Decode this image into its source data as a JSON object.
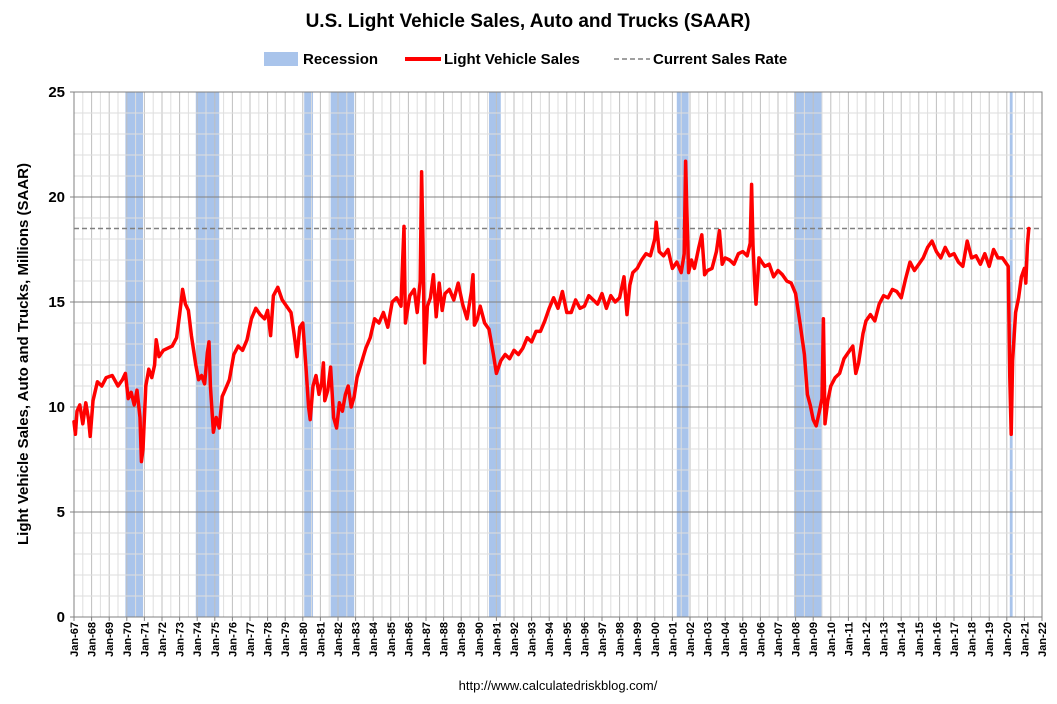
{
  "chart_data": {
    "type": "line",
    "title": "U.S. Light Vehicle Sales, Auto and Trucks (SAAR)",
    "ylabel": "Light Vehicle Sales, Auto and Trucks, Millions (SAAR)",
    "xlabel": "",
    "source": "http://www.calculatedriskblog.com/",
    "ylim": [
      0,
      25
    ],
    "yticks": [
      0,
      5,
      10,
      15,
      20,
      25
    ],
    "xlim": [
      1967.0,
      2022.0
    ],
    "x_tick_labels": [
      "Jan-67",
      "Jan-68",
      "Jan-69",
      "Jan-70",
      "Jan-71",
      "Jan-72",
      "Jan-73",
      "Jan-74",
      "Jan-75",
      "Jan-76",
      "Jan-77",
      "Jan-78",
      "Jan-79",
      "Jan-80",
      "Jan-81",
      "Jan-82",
      "Jan-83",
      "Jan-84",
      "Jan-85",
      "Jan-86",
      "Jan-87",
      "Jan-88",
      "Jan-89",
      "Jan-90",
      "Jan-91",
      "Jan-92",
      "Jan-93",
      "Jan-94",
      "Jan-95",
      "Jan-96",
      "Jan-97",
      "Jan-98",
      "Jan-99",
      "Jan-00",
      "Jan-01",
      "Jan-02",
      "Jan-03",
      "Jan-04",
      "Jan-05",
      "Jan-06",
      "Jan-07",
      "Jan-08",
      "Jan-09",
      "Jan-10",
      "Jan-11",
      "Jan-12",
      "Jan-13",
      "Jan-14",
      "Jan-15",
      "Jan-16",
      "Jan-17",
      "Jan-18",
      "Jan-19",
      "Jan-20",
      "Jan-21",
      "Jan-22"
    ],
    "grid": true,
    "legend_position": "top",
    "legend": [
      {
        "label": "Recession",
        "kind": "box",
        "color": "#a9c4eb"
      },
      {
        "label": "Light Vehicle Sales",
        "kind": "line",
        "color": "#ff0000"
      },
      {
        "label": "Current Sales Rate",
        "kind": "dashed",
        "color": "#808080"
      }
    ],
    "current_sales_rate": 18.5,
    "recessions": [
      [
        1969.92,
        1970.92
      ],
      [
        1973.92,
        1975.25
      ],
      [
        1980.08,
        1980.58
      ],
      [
        1981.58,
        1982.92
      ],
      [
        1990.58,
        1991.25
      ],
      [
        2001.25,
        2001.92
      ],
      [
        2007.92,
        2009.5
      ],
      [
        2020.17,
        2020.33
      ]
    ],
    "series": [
      {
        "name": "Light Vehicle Sales",
        "color": "#ff0000",
        "points": [
          [
            1967.0,
            9.3
          ],
          [
            1967.08,
            8.7
          ],
          [
            1967.17,
            9.8
          ],
          [
            1967.33,
            10.1
          ],
          [
            1967.5,
            9.2
          ],
          [
            1967.67,
            10.2
          ],
          [
            1967.83,
            9.4
          ],
          [
            1967.92,
            8.6
          ],
          [
            1968.08,
            10.3
          ],
          [
            1968.33,
            11.2
          ],
          [
            1968.58,
            11.0
          ],
          [
            1968.83,
            11.4
          ],
          [
            1969.17,
            11.5
          ],
          [
            1969.5,
            11.0
          ],
          [
            1969.75,
            11.3
          ],
          [
            1969.92,
            11.6
          ],
          [
            1970.08,
            10.4
          ],
          [
            1970.25,
            10.7
          ],
          [
            1970.42,
            10.1
          ],
          [
            1970.58,
            10.8
          ],
          [
            1970.75,
            9.5
          ],
          [
            1970.83,
            7.4
          ],
          [
            1970.92,
            8.0
          ],
          [
            1971.08,
            11.0
          ],
          [
            1971.25,
            11.8
          ],
          [
            1971.42,
            11.4
          ],
          [
            1971.58,
            12.0
          ],
          [
            1971.67,
            13.2
          ],
          [
            1971.83,
            12.4
          ],
          [
            1972.08,
            12.7
          ],
          [
            1972.33,
            12.8
          ],
          [
            1972.58,
            12.9
          ],
          [
            1972.83,
            13.3
          ],
          [
            1973.0,
            14.4
          ],
          [
            1973.17,
            15.6
          ],
          [
            1973.33,
            14.9
          ],
          [
            1973.5,
            14.6
          ],
          [
            1973.67,
            13.4
          ],
          [
            1973.92,
            12.0
          ],
          [
            1974.08,
            11.3
          ],
          [
            1974.25,
            11.5
          ],
          [
            1974.42,
            11.1
          ],
          [
            1974.58,
            12.6
          ],
          [
            1974.67,
            13.1
          ],
          [
            1974.75,
            11.0
          ],
          [
            1974.92,
            8.8
          ],
          [
            1975.08,
            9.5
          ],
          [
            1975.25,
            9.0
          ],
          [
            1975.42,
            10.5
          ],
          [
            1975.58,
            10.8
          ],
          [
            1975.83,
            11.3
          ],
          [
            1976.08,
            12.5
          ],
          [
            1976.33,
            12.9
          ],
          [
            1976.58,
            12.7
          ],
          [
            1976.83,
            13.2
          ],
          [
            1977.08,
            14.2
          ],
          [
            1977.33,
            14.7
          ],
          [
            1977.58,
            14.4
          ],
          [
            1977.83,
            14.2
          ],
          [
            1978.0,
            14.6
          ],
          [
            1978.17,
            13.4
          ],
          [
            1978.33,
            15.3
          ],
          [
            1978.58,
            15.7
          ],
          [
            1978.83,
            15.1
          ],
          [
            1979.08,
            14.8
          ],
          [
            1979.33,
            14.5
          ],
          [
            1979.5,
            13.5
          ],
          [
            1979.67,
            12.4
          ],
          [
            1979.83,
            13.8
          ],
          [
            1980.0,
            14.0
          ],
          [
            1980.17,
            12.0
          ],
          [
            1980.33,
            10.0
          ],
          [
            1980.42,
            9.4
          ],
          [
            1980.58,
            11.0
          ],
          [
            1980.75,
            11.5
          ],
          [
            1980.92,
            10.6
          ],
          [
            1981.08,
            11.2
          ],
          [
            1981.17,
            12.1
          ],
          [
            1981.25,
            10.3
          ],
          [
            1981.42,
            10.8
          ],
          [
            1981.58,
            11.9
          ],
          [
            1981.75,
            9.5
          ],
          [
            1981.92,
            9.0
          ],
          [
            1982.08,
            10.2
          ],
          [
            1982.25,
            9.8
          ],
          [
            1982.42,
            10.6
          ],
          [
            1982.58,
            11.0
          ],
          [
            1982.75,
            10.0
          ],
          [
            1982.92,
            10.5
          ],
          [
            1983.08,
            11.4
          ],
          [
            1983.33,
            12.1
          ],
          [
            1983.58,
            12.8
          ],
          [
            1983.83,
            13.3
          ],
          [
            1984.08,
            14.2
          ],
          [
            1984.33,
            14.0
          ],
          [
            1984.58,
            14.5
          ],
          [
            1984.83,
            13.8
          ],
          [
            1985.08,
            15.0
          ],
          [
            1985.33,
            15.2
          ],
          [
            1985.58,
            14.8
          ],
          [
            1985.67,
            16.9
          ],
          [
            1985.75,
            18.6
          ],
          [
            1985.83,
            14.0
          ],
          [
            1986.08,
            15.3
          ],
          [
            1986.33,
            15.6
          ],
          [
            1986.5,
            14.5
          ],
          [
            1986.67,
            16.0
          ],
          [
            1986.75,
            21.2
          ],
          [
            1986.83,
            17.7
          ],
          [
            1986.92,
            12.1
          ],
          [
            1987.08,
            14.8
          ],
          [
            1987.25,
            15.2
          ],
          [
            1987.42,
            16.3
          ],
          [
            1987.58,
            14.3
          ],
          [
            1987.75,
            15.9
          ],
          [
            1987.92,
            14.6
          ],
          [
            1988.08,
            15.4
          ],
          [
            1988.33,
            15.6
          ],
          [
            1988.58,
            15.1
          ],
          [
            1988.83,
            15.9
          ],
          [
            1989.08,
            14.9
          ],
          [
            1989.33,
            14.2
          ],
          [
            1989.58,
            15.5
          ],
          [
            1989.67,
            16.3
          ],
          [
            1989.75,
            13.9
          ],
          [
            1989.92,
            14.2
          ],
          [
            1990.08,
            14.8
          ],
          [
            1990.33,
            14.0
          ],
          [
            1990.58,
            13.7
          ],
          [
            1990.83,
            12.5
          ],
          [
            1991.0,
            11.6
          ],
          [
            1991.25,
            12.2
          ],
          [
            1991.5,
            12.5
          ],
          [
            1991.75,
            12.3
          ],
          [
            1992.0,
            12.7
          ],
          [
            1992.25,
            12.5
          ],
          [
            1992.5,
            12.8
          ],
          [
            1992.75,
            13.3
          ],
          [
            1993.0,
            13.1
          ],
          [
            1993.25,
            13.6
          ],
          [
            1993.5,
            13.6
          ],
          [
            1993.75,
            14.1
          ],
          [
            1994.0,
            14.7
          ],
          [
            1994.25,
            15.2
          ],
          [
            1994.5,
            14.7
          ],
          [
            1994.75,
            15.5
          ],
          [
            1995.0,
            14.5
          ],
          [
            1995.25,
            14.5
          ],
          [
            1995.5,
            15.1
          ],
          [
            1995.75,
            14.7
          ],
          [
            1996.0,
            14.8
          ],
          [
            1996.25,
            15.3
          ],
          [
            1996.5,
            15.1
          ],
          [
            1996.75,
            14.9
          ],
          [
            1997.0,
            15.4
          ],
          [
            1997.25,
            14.7
          ],
          [
            1997.5,
            15.3
          ],
          [
            1997.75,
            15.0
          ],
          [
            1998.0,
            15.2
          ],
          [
            1998.25,
            16.2
          ],
          [
            1998.42,
            14.4
          ],
          [
            1998.58,
            15.8
          ],
          [
            1998.75,
            16.4
          ],
          [
            1999.0,
            16.6
          ],
          [
            1999.25,
            17.0
          ],
          [
            1999.5,
            17.3
          ],
          [
            1999.75,
            17.2
          ],
          [
            2000.0,
            18.0
          ],
          [
            2000.08,
            18.8
          ],
          [
            2000.25,
            17.4
          ],
          [
            2000.5,
            17.2
          ],
          [
            2000.75,
            17.5
          ],
          [
            2001.0,
            16.6
          ],
          [
            2001.25,
            16.9
          ],
          [
            2001.5,
            16.4
          ],
          [
            2001.67,
            17.3
          ],
          [
            2001.75,
            21.7
          ],
          [
            2001.83,
            19.1
          ],
          [
            2001.92,
            16.4
          ],
          [
            2002.08,
            17.0
          ],
          [
            2002.25,
            16.6
          ],
          [
            2002.5,
            17.6
          ],
          [
            2002.67,
            18.2
          ],
          [
            2002.83,
            16.3
          ],
          [
            2003.0,
            16.5
          ],
          [
            2003.25,
            16.6
          ],
          [
            2003.5,
            17.4
          ],
          [
            2003.67,
            18.4
          ],
          [
            2003.83,
            16.8
          ],
          [
            2004.0,
            17.1
          ],
          [
            2004.25,
            17.0
          ],
          [
            2004.5,
            16.8
          ],
          [
            2004.75,
            17.3
          ],
          [
            2005.0,
            17.4
          ],
          [
            2005.25,
            17.2
          ],
          [
            2005.42,
            17.8
          ],
          [
            2005.5,
            20.6
          ],
          [
            2005.58,
            17.7
          ],
          [
            2005.67,
            16.0
          ],
          [
            2005.75,
            14.9
          ],
          [
            2005.92,
            17.1
          ],
          [
            2006.08,
            16.9
          ],
          [
            2006.25,
            16.7
          ],
          [
            2006.5,
            16.8
          ],
          [
            2006.75,
            16.2
          ],
          [
            2007.0,
            16.5
          ],
          [
            2007.25,
            16.3
          ],
          [
            2007.5,
            16.0
          ],
          [
            2007.75,
            15.9
          ],
          [
            2008.0,
            15.4
          ],
          [
            2008.25,
            14.0
          ],
          [
            2008.5,
            12.5
          ],
          [
            2008.67,
            10.6
          ],
          [
            2008.83,
            10.1
          ],
          [
            2009.0,
            9.4
          ],
          [
            2009.17,
            9.1
          ],
          [
            2009.33,
            9.7
          ],
          [
            2009.5,
            10.4
          ],
          [
            2009.58,
            14.2
          ],
          [
            2009.67,
            9.2
          ],
          [
            2009.83,
            10.3
          ],
          [
            2010.0,
            11.0
          ],
          [
            2010.25,
            11.4
          ],
          [
            2010.5,
            11.6
          ],
          [
            2010.75,
            12.3
          ],
          [
            2011.0,
            12.6
          ],
          [
            2011.25,
            12.9
          ],
          [
            2011.42,
            11.6
          ],
          [
            2011.58,
            12.1
          ],
          [
            2011.83,
            13.5
          ],
          [
            2012.0,
            14.1
          ],
          [
            2012.25,
            14.4
          ],
          [
            2012.5,
            14.1
          ],
          [
            2012.75,
            14.9
          ],
          [
            2013.0,
            15.3
          ],
          [
            2013.25,
            15.2
          ],
          [
            2013.5,
            15.6
          ],
          [
            2013.75,
            15.5
          ],
          [
            2014.0,
            15.2
          ],
          [
            2014.25,
            16.1
          ],
          [
            2014.5,
            16.9
          ],
          [
            2014.75,
            16.5
          ],
          [
            2015.0,
            16.8
          ],
          [
            2015.25,
            17.1
          ],
          [
            2015.5,
            17.6
          ],
          [
            2015.75,
            17.9
          ],
          [
            2016.0,
            17.4
          ],
          [
            2016.25,
            17.1
          ],
          [
            2016.5,
            17.6
          ],
          [
            2016.75,
            17.2
          ],
          [
            2017.0,
            17.3
          ],
          [
            2017.25,
            16.9
          ],
          [
            2017.5,
            16.7
          ],
          [
            2017.75,
            17.9
          ],
          [
            2018.0,
            17.1
          ],
          [
            2018.25,
            17.2
          ],
          [
            2018.5,
            16.8
          ],
          [
            2018.75,
            17.3
          ],
          [
            2019.0,
            16.7
          ],
          [
            2019.25,
            17.5
          ],
          [
            2019.5,
            17.1
          ],
          [
            2019.75,
            17.1
          ],
          [
            2020.0,
            16.8
          ],
          [
            2020.08,
            16.7
          ],
          [
            2020.17,
            11.4
          ],
          [
            2020.25,
            8.7
          ],
          [
            2020.33,
            12.2
          ],
          [
            2020.5,
            14.5
          ],
          [
            2020.67,
            15.2
          ],
          [
            2020.83,
            16.2
          ],
          [
            2021.0,
            16.6
          ],
          [
            2021.08,
            15.9
          ],
          [
            2021.17,
            17.7
          ],
          [
            2021.25,
            18.5
          ]
        ]
      }
    ]
  }
}
